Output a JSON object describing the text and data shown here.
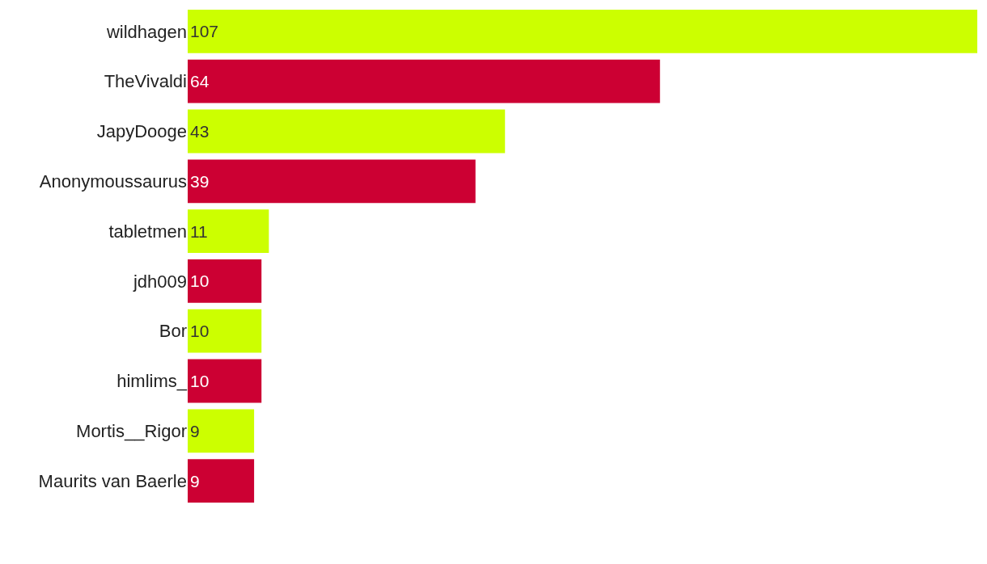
{
  "chart_data": {
    "type": "bar",
    "orientation": "horizontal",
    "categories": [
      "wildhagen",
      "TheVivaldi",
      "JapyDooge",
      "Anonymoussaurus",
      "tabletmen",
      "jdh009",
      "Bor",
      "himlims_",
      "Mortis__Rigor",
      "Maurits van Baerle"
    ],
    "values": [
      107,
      64,
      43,
      39,
      11,
      10,
      10,
      10,
      9,
      9
    ],
    "colors": [
      "#ccff00",
      "#cc0033",
      "#ccff00",
      "#cc0033",
      "#ccff00",
      "#cc0033",
      "#ccff00",
      "#cc0033",
      "#ccff00",
      "#cc0033"
    ],
    "xlim": [
      0,
      107
    ],
    "data_labels": true,
    "grid": false,
    "legend": false,
    "tick_labels": "y"
  }
}
